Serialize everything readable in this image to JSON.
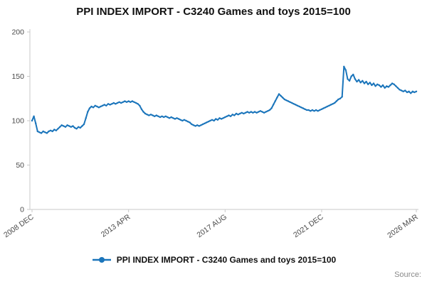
{
  "page": {
    "title": "PPI INDEX IMPORT - C3240 Games and toys 2015=100",
    "source_label": "Source:"
  },
  "legend": {
    "label": "PPI INDEX IMPORT - C3240 Games and toys 2015=100"
  },
  "chart_data": {
    "type": "line",
    "title": "PPI INDEX IMPORT - C3240 Games and toys 2015=100",
    "line_color": "#1b75bb",
    "ylim": [
      0,
      200
    ],
    "y_ticks": [
      0,
      50,
      100,
      150,
      200
    ],
    "x_tick_labels": [
      "2008 DEC",
      "2013 APR",
      "2017 AUG",
      "2021 DEC",
      "2026 MAR"
    ],
    "x_tick_indices": [
      0,
      52,
      104,
      156,
      207
    ],
    "grid": false,
    "legend_position": "bottom",
    "series": [
      {
        "name": "PPI INDEX IMPORT - C3240 Games and toys 2015=100",
        "values": [
          100,
          105,
          97,
          88,
          87,
          86,
          88,
          87,
          86,
          88,
          89,
          88,
          90,
          89,
          91,
          93,
          95,
          94,
          93,
          95,
          94,
          93,
          94,
          92,
          91,
          93,
          92,
          94,
          96,
          103,
          110,
          114,
          116,
          115,
          117,
          116,
          115,
          116,
          117,
          118,
          117,
          119,
          118,
          119,
          120,
          119,
          120,
          121,
          120,
          121,
          122,
          121,
          122,
          121,
          122,
          121,
          120,
          119,
          117,
          113,
          110,
          108,
          107,
          106,
          107,
          106,
          105,
          106,
          105,
          104,
          105,
          104,
          105,
          104,
          103,
          104,
          103,
          102,
          103,
          102,
          101,
          100,
          101,
          100,
          99,
          98,
          96,
          95,
          94,
          95,
          94,
          95,
          96,
          97,
          98,
          99,
          100,
          101,
          100,
          102,
          101,
          103,
          102,
          103,
          104,
          105,
          106,
          105,
          107,
          106,
          108,
          107,
          108,
          109,
          108,
          109,
          110,
          109,
          110,
          109,
          110,
          109,
          110,
          111,
          110,
          109,
          110,
          111,
          112,
          114,
          118,
          122,
          126,
          130,
          128,
          126,
          124,
          123,
          122,
          121,
          120,
          119,
          118,
          117,
          116,
          115,
          114,
          113,
          112,
          112,
          111,
          112,
          111,
          112,
          111,
          112,
          113,
          114,
          115,
          116,
          117,
          118,
          119,
          120,
          122,
          124,
          125,
          127,
          161,
          157,
          147,
          145,
          150,
          152,
          147,
          144,
          146,
          143,
          145,
          142,
          144,
          141,
          143,
          140,
          142,
          139,
          141,
          140,
          138,
          140,
          137,
          139,
          138,
          140,
          142,
          141,
          139,
          137,
          135,
          134,
          133,
          134,
          132,
          133,
          131,
          133,
          132,
          133
        ]
      }
    ]
  }
}
